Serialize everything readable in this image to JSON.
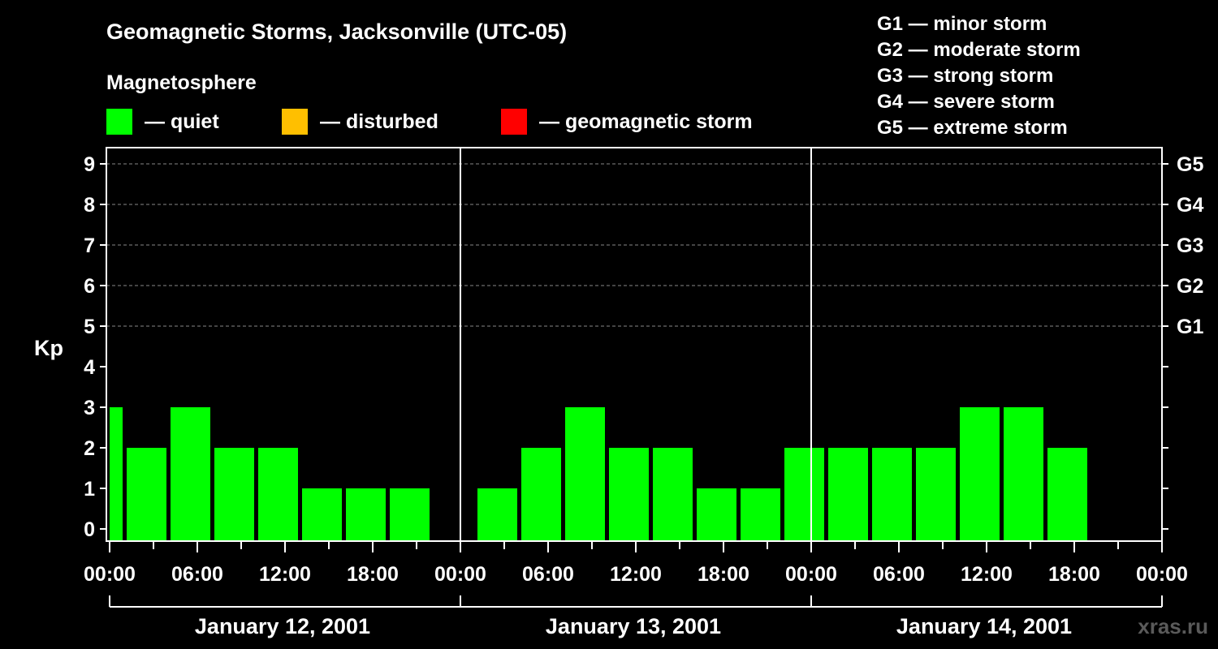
{
  "chart_data": {
    "type": "bar",
    "title": "Geomagnetic Storms, Jacksonville (UTC-05)",
    "legend_title": "Magnetosphere",
    "legend": [
      {
        "label": "— quiet",
        "color": "#00ff00"
      },
      {
        "label": "— disturbed",
        "color": "#ffbf00"
      },
      {
        "label": "— geomagnetic storm",
        "color": "#ff0000"
      }
    ],
    "storm_scale": [
      "G1 — minor storm",
      "G2 — moderate storm",
      "G3 — strong storm",
      "G4 — severe storm",
      "G5 — extreme storm"
    ],
    "ylabel": "Kp",
    "ylim": [
      0,
      9
    ],
    "y_ticks": [
      "0",
      "1",
      "2",
      "3",
      "4",
      "5",
      "6",
      "7",
      "8",
      "9"
    ],
    "right_ticks": [
      {
        "value": 5,
        "label": "G1"
      },
      {
        "value": 6,
        "label": "G2"
      },
      {
        "value": 7,
        "label": "G3"
      },
      {
        "value": 8,
        "label": "G4"
      },
      {
        "value": 9,
        "label": "G5"
      }
    ],
    "x_hours_range": [
      0,
      72
    ],
    "x_tick_labels": [
      "00:00",
      "06:00",
      "12:00",
      "18:00",
      "00:00",
      "06:00",
      "12:00",
      "18:00",
      "00:00",
      "06:00",
      "12:00",
      "18:00",
      "00:00"
    ],
    "days": [
      "January 12, 2001",
      "January 13, 2001",
      "January 14, 2001"
    ],
    "bars": [
      {
        "start_h": 0,
        "end_h": 1,
        "kp": 3,
        "status": "quiet"
      },
      {
        "start_h": 1,
        "end_h": 4,
        "kp": 2,
        "status": "quiet"
      },
      {
        "start_h": 4,
        "end_h": 7,
        "kp": 3,
        "status": "quiet"
      },
      {
        "start_h": 7,
        "end_h": 10,
        "kp": 2,
        "status": "quiet"
      },
      {
        "start_h": 10,
        "end_h": 13,
        "kp": 2,
        "status": "quiet"
      },
      {
        "start_h": 13,
        "end_h": 16,
        "kp": 1,
        "status": "quiet"
      },
      {
        "start_h": 16,
        "end_h": 19,
        "kp": 1,
        "status": "quiet"
      },
      {
        "start_h": 19,
        "end_h": 22,
        "kp": 1,
        "status": "quiet"
      },
      {
        "start_h": 25,
        "end_h": 28,
        "kp": 1,
        "status": "quiet"
      },
      {
        "start_h": 28,
        "end_h": 31,
        "kp": 2,
        "status": "quiet"
      },
      {
        "start_h": 31,
        "end_h": 34,
        "kp": 3,
        "status": "quiet"
      },
      {
        "start_h": 34,
        "end_h": 37,
        "kp": 2,
        "status": "quiet"
      },
      {
        "start_h": 37,
        "end_h": 40,
        "kp": 2,
        "status": "quiet"
      },
      {
        "start_h": 40,
        "end_h": 43,
        "kp": 1,
        "status": "quiet"
      },
      {
        "start_h": 43,
        "end_h": 46,
        "kp": 1,
        "status": "quiet"
      },
      {
        "start_h": 46,
        "end_h": 49,
        "kp": 2,
        "status": "quiet"
      },
      {
        "start_h": 49,
        "end_h": 52,
        "kp": 2,
        "status": "quiet"
      },
      {
        "start_h": 52,
        "end_h": 55,
        "kp": 2,
        "status": "quiet"
      },
      {
        "start_h": 55,
        "end_h": 58,
        "kp": 2,
        "status": "quiet"
      },
      {
        "start_h": 58,
        "end_h": 61,
        "kp": 3,
        "status": "quiet"
      },
      {
        "start_h": 61,
        "end_h": 64,
        "kp": 3,
        "status": "quiet"
      },
      {
        "start_h": 64,
        "end_h": 67,
        "kp": 2,
        "status": "quiet"
      }
    ],
    "grid": true
  },
  "watermark": "xras.ru",
  "colors": {
    "background": "#000000",
    "foreground": "#ffffff",
    "quiet": "#00ff00",
    "disturbed": "#ffbf00",
    "storm": "#ff0000",
    "grid": "#888888"
  }
}
